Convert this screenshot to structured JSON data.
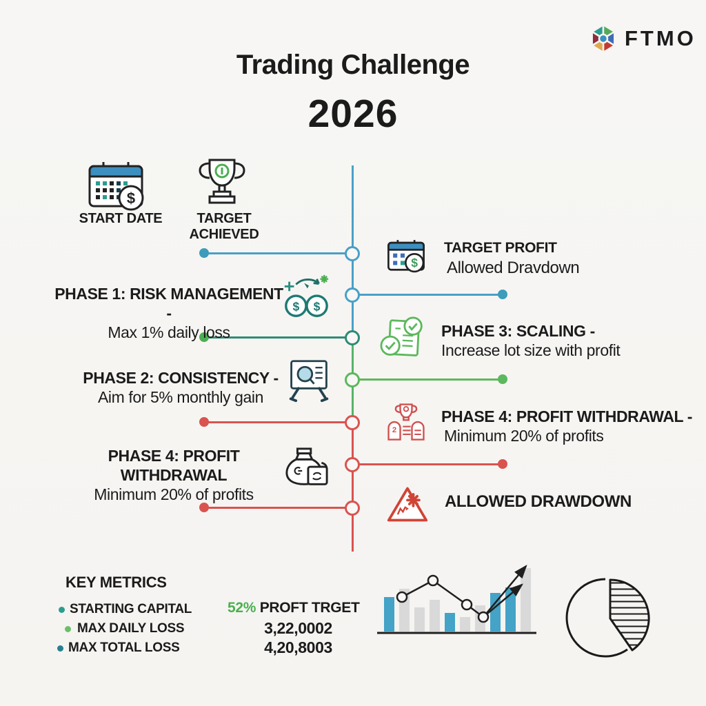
{
  "header": {
    "title": "Trading Challenge",
    "year": "2026",
    "brand": "FTMO"
  },
  "legend": {
    "items": [
      {
        "label": "START DATE",
        "icon": "calendar-dollar"
      },
      {
        "label": "TARGET ACHIEVED",
        "icon": "trophy"
      }
    ]
  },
  "timeline": {
    "left": [
      {
        "title": "PHASE 1: RISK MANAGEMENT -",
        "subtitle": "Max 1% daily loss",
        "icon": "coins"
      },
      {
        "title": "PHASE 2: CONSISTENCY -",
        "subtitle": "Aim for 5% monthly gain",
        "icon": "monitor-magnifier"
      },
      {
        "title": "PHASE 4: PROFIT WITHDRAWAL",
        "subtitle": "Minimum 20% of profits",
        "icon": "money-bag"
      }
    ],
    "right": [
      {
        "title": "TARGET PROFIT",
        "subtitle": "Allowed Dravdown",
        "icon": "calendar-dollar"
      },
      {
        "title": "PHASE 3: SCALING -",
        "subtitle": "Increase lot size with profit",
        "icon": "checklist"
      },
      {
        "title": "PHASE 4: PROFIT WITHDRAWAL -",
        "subtitle": "Minimum 20% of profits",
        "icon": "trophy-documents"
      },
      {
        "title": "ALLOWED DRAWDOWN",
        "subtitle": "",
        "icon": "warning-triangle"
      }
    ],
    "colors": {
      "blue": "#49a0c6",
      "teal": "#2e8b74",
      "green": "#5cb85c",
      "red": "#d9534f"
    }
  },
  "key_metrics": {
    "heading": "KEY METRICS",
    "items": [
      {
        "label": "STARTING CAPITAL",
        "dot_color": "#2a9d8f"
      },
      {
        "label": "MAX DAILY LOSS",
        "dot_color": "#6abf69"
      },
      {
        "label": "MAX TOTAL LOSS",
        "dot_color": "#27808f"
      }
    ]
  },
  "stats": {
    "highlight": "52%",
    "highlight_color": "#4caf50",
    "label": "PROFT TRGET",
    "figures": [
      "3,22,0002",
      "4,20,8003"
    ]
  },
  "chart_data": {
    "type": "bar",
    "title": "",
    "categories": [],
    "bars": {
      "heights": [
        50,
        62,
        35,
        46,
        27,
        21,
        38,
        56,
        64,
        92
      ],
      "colors": [
        "#44a3c6",
        "#d9d9d9",
        "#d9d9d9",
        "#d9d9d9",
        "#44a3c6",
        "#d9d9d9",
        "#d9d9d9",
        "#44a3c6",
        "#44a3c6",
        "#d9d9d9"
      ]
    },
    "line_points": [
      [
        38,
        58
      ],
      [
        83,
        34
      ],
      [
        132,
        69
      ],
      [
        156,
        87
      ]
    ],
    "arrows": [
      [
        156,
        87,
        218,
        13
      ],
      [
        156,
        87,
        212,
        40
      ]
    ],
    "pie": {
      "wedge_start_deg": 0,
      "wedge_end_deg": 145,
      "style": "hatched"
    }
  }
}
